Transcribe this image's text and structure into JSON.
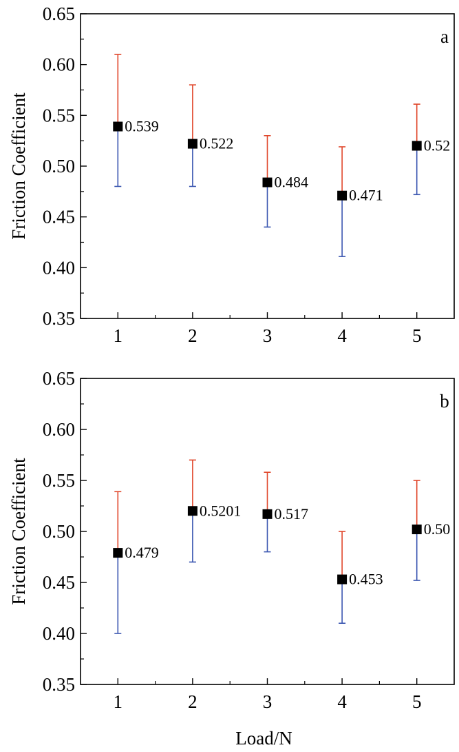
{
  "chart_data": [
    {
      "type": "scatter",
      "panel_label": "a",
      "xlabel": "",
      "ylabel": "Friction Coefficient",
      "x": [
        1,
        2,
        3,
        4,
        5
      ],
      "x_tick_labels": [
        "1",
        "2",
        "3",
        "4",
        "5"
      ],
      "y_tick_labels": [
        "0.35",
        "0.40",
        "0.45",
        "0.50",
        "0.55",
        "0.60",
        "0.65"
      ],
      "xlim": [
        0.5,
        5.5
      ],
      "ylim": [
        0.35,
        0.65
      ],
      "series": [
        {
          "values": [
            0.539,
            0.522,
            0.484,
            0.471,
            0.52
          ],
          "upper": [
            0.61,
            0.58,
            0.53,
            0.519,
            0.561
          ],
          "lower": [
            0.48,
            0.48,
            0.44,
            0.411,
            0.472
          ],
          "labels": [
            "0.539",
            "0.522",
            "0.484",
            "0.471",
            "0.52"
          ],
          "marker_color": "#000000",
          "upper_error_color": "#e0462a",
          "lower_error_color": "#3a56b0"
        }
      ]
    },
    {
      "type": "scatter",
      "panel_label": "b",
      "xlabel": "Load/N",
      "ylabel": "Friction Coefficient",
      "x": [
        1,
        2,
        3,
        4,
        5
      ],
      "x_tick_labels": [
        "1",
        "2",
        "3",
        "4",
        "5"
      ],
      "y_tick_labels": [
        "0.35",
        "0.40",
        "0.45",
        "0.50",
        "0.55",
        "0.60",
        "0.65"
      ],
      "xlim": [
        0.5,
        5.5
      ],
      "ylim": [
        0.35,
        0.65
      ],
      "series": [
        {
          "values": [
            0.479,
            0.5201,
            0.517,
            0.453,
            0.502
          ],
          "upper": [
            0.539,
            0.57,
            0.558,
            0.5,
            0.55
          ],
          "lower": [
            0.4,
            0.47,
            0.48,
            0.41,
            0.452
          ],
          "labels": [
            "0.479",
            "0.5201",
            "0.517",
            "0.453",
            "0.50"
          ],
          "marker_color": "#000000",
          "upper_error_color": "#e0462a",
          "lower_error_color": "#3a56b0"
        }
      ]
    }
  ]
}
